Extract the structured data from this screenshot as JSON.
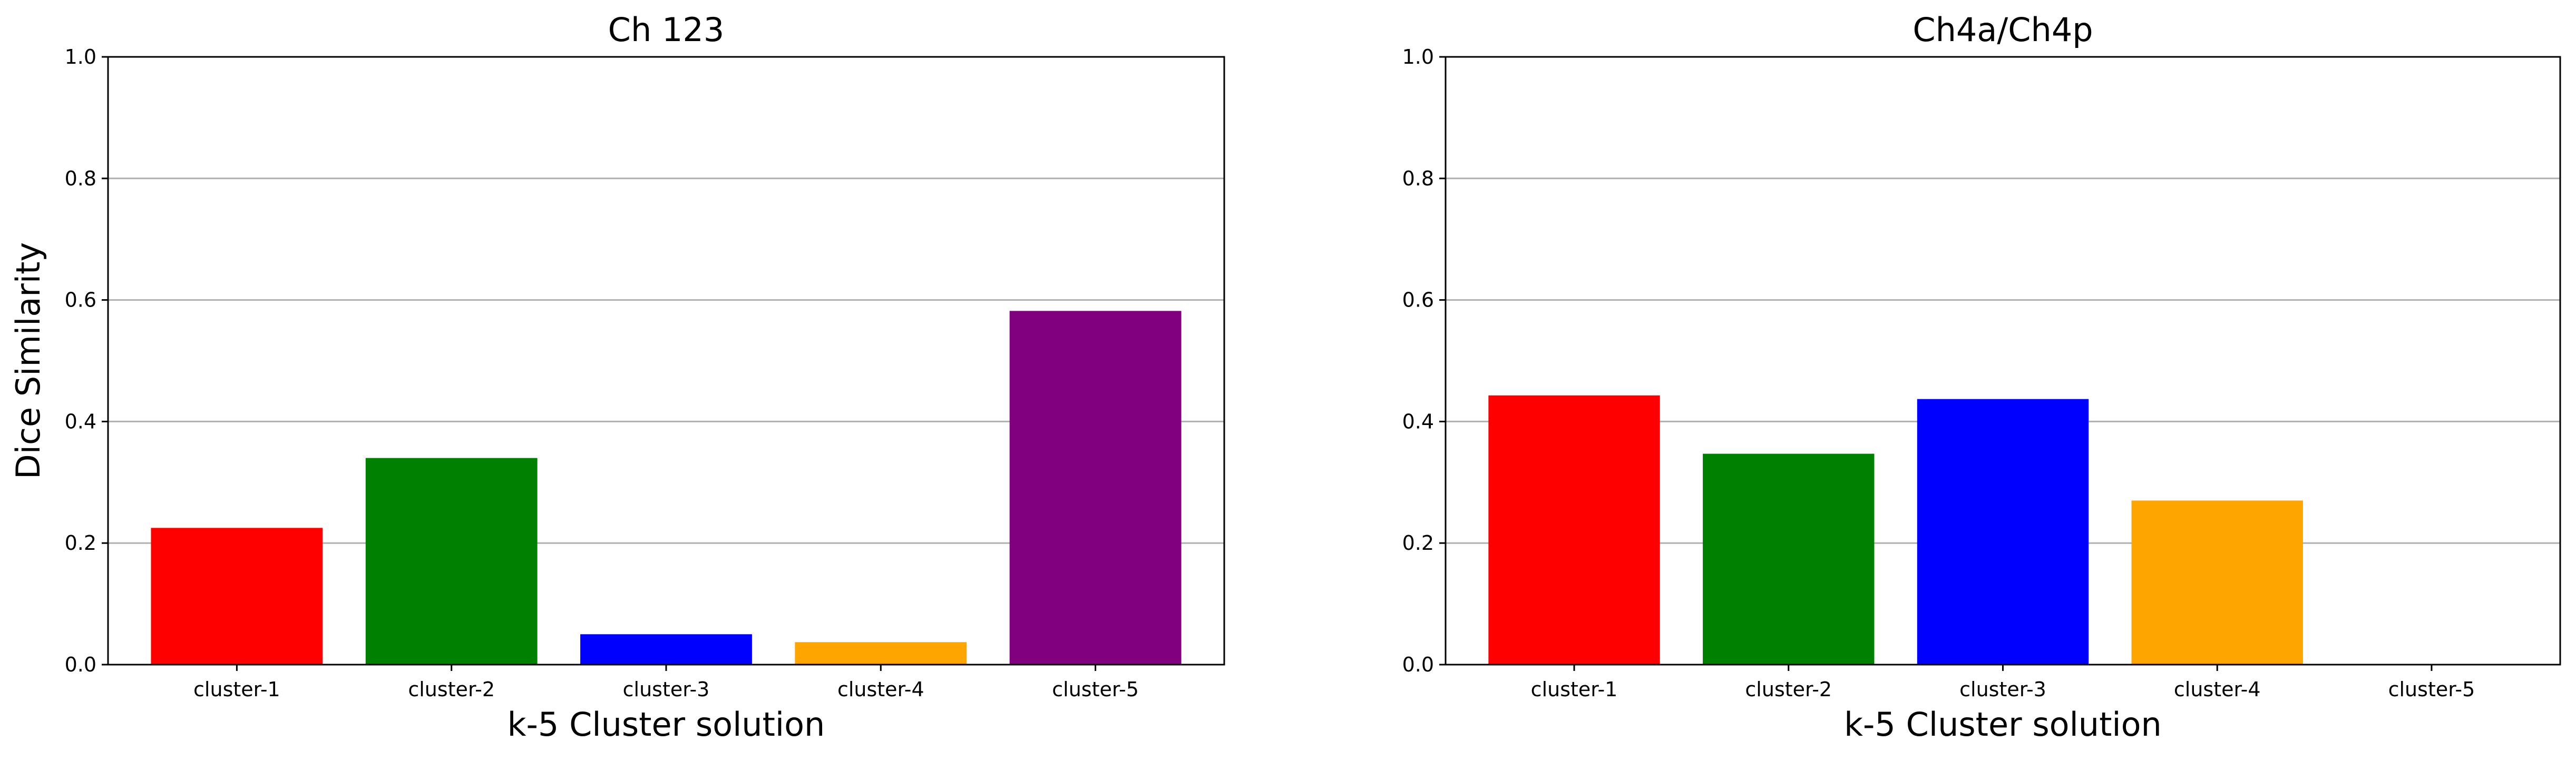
{
  "chart_data": [
    {
      "type": "bar",
      "title": "Ch 123",
      "xlabel": "k-5 Cluster solution",
      "ylabel": "Dice Similarity",
      "categories": [
        "cluster-1",
        "cluster-2",
        "cluster-3",
        "cluster-4",
        "cluster-5"
      ],
      "values": [
        0.225,
        0.34,
        0.05,
        0.037,
        0.582
      ],
      "colors": [
        "#ff0000",
        "#008000",
        "#0000ff",
        "#ffa500",
        "#800080"
      ],
      "ylim": [
        0,
        1.0
      ],
      "yticks": [
        "0.0",
        "0.2",
        "0.4",
        "0.6",
        "0.8",
        "1.0"
      ],
      "grid": "horizontal"
    },
    {
      "type": "bar",
      "title": "Ch4a/Ch4p",
      "xlabel": "k-5 Cluster solution",
      "ylabel": "",
      "categories": [
        "cluster-1",
        "cluster-2",
        "cluster-3",
        "cluster-4",
        "cluster-5"
      ],
      "values": [
        0.443,
        0.347,
        0.437,
        0.27,
        0.0
      ],
      "colors": [
        "#ff0000",
        "#008000",
        "#0000ff",
        "#ffa500",
        "#800080"
      ],
      "ylim": [
        0,
        1.0
      ],
      "yticks": [
        "0.0",
        "0.2",
        "0.4",
        "0.6",
        "0.8",
        "1.0"
      ],
      "grid": "horizontal"
    }
  ]
}
